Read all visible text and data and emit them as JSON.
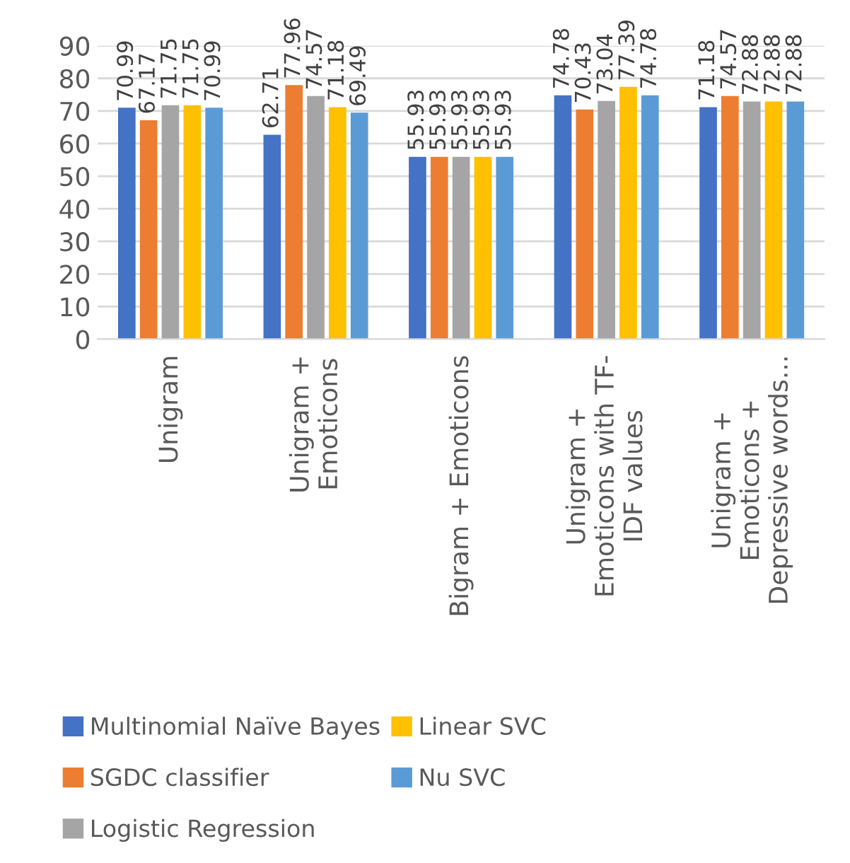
{
  "chart_data": {
    "type": "bar",
    "categories": [
      "Unigram",
      "Unigram +\nEmoticons",
      "Bigram + Emoticons",
      "Unigram +\nEmoticons with TF-\nIDF values",
      "Unigram +\nEmoticons +\nDepressive words..."
    ],
    "series": [
      {
        "name": "Multinomial Naïve Bayes",
        "color": "#4472c4",
        "values": [
          70.99,
          62.71,
          55.93,
          74.78,
          71.18
        ]
      },
      {
        "name": "SGDC classifier",
        "color": "#ed7d31",
        "values": [
          67.17,
          77.96,
          55.93,
          70.43,
          74.57
        ]
      },
      {
        "name": "Logistic Regression",
        "color": "#a5a5a5",
        "values": [
          71.75,
          74.57,
          55.93,
          73.04,
          72.88
        ]
      },
      {
        "name": "Linear SVC",
        "color": "#ffc000",
        "values": [
          71.75,
          71.18,
          55.93,
          77.39,
          72.88
        ]
      },
      {
        "name": "Nu SVC",
        "color": "#5b9bd5",
        "values": [
          70.99,
          69.49,
          55.93,
          74.78,
          72.88
        ]
      }
    ],
    "ylim": [
      0,
      90
    ],
    "yticks": [
      0,
      10,
      20,
      30,
      40,
      50,
      60,
      70,
      80,
      90
    ],
    "grid": "y",
    "data_labels": true,
    "legend": "bottom"
  }
}
